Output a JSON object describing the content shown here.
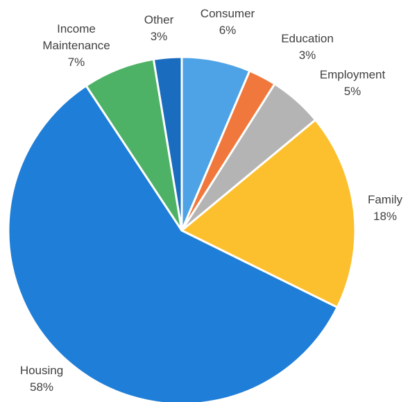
{
  "chart_data": {
    "type": "pie",
    "title": "",
    "slices": [
      {
        "label": "Consumer",
        "pct_label": "6%",
        "value": 6.4,
        "color": "#4da3e6"
      },
      {
        "label": "Education",
        "pct_label": "3%",
        "value": 2.6,
        "color": "#f0783c"
      },
      {
        "label": "Employment",
        "pct_label": "5%",
        "value": 5.0,
        "color": "#b4b4b4"
      },
      {
        "label": "Family",
        "pct_label": "18%",
        "value": 18.3,
        "color": "#fcc02e"
      },
      {
        "label": "Housing",
        "pct_label": "58%",
        "value": 58.4,
        "color": "#1f7ed8"
      },
      {
        "label": "Income Maintenance",
        "label_lines": [
          "Income",
          "Maintenance"
        ],
        "pct_label": "7%",
        "value": 6.7,
        "color": "#4db266"
      },
      {
        "label": "Other",
        "pct_label": "3%",
        "value": 2.6,
        "color": "#1a6cbf"
      }
    ],
    "start_angle_deg": 0,
    "direction": "clockwise",
    "slice_border": "#ffffff",
    "legend": "none"
  }
}
